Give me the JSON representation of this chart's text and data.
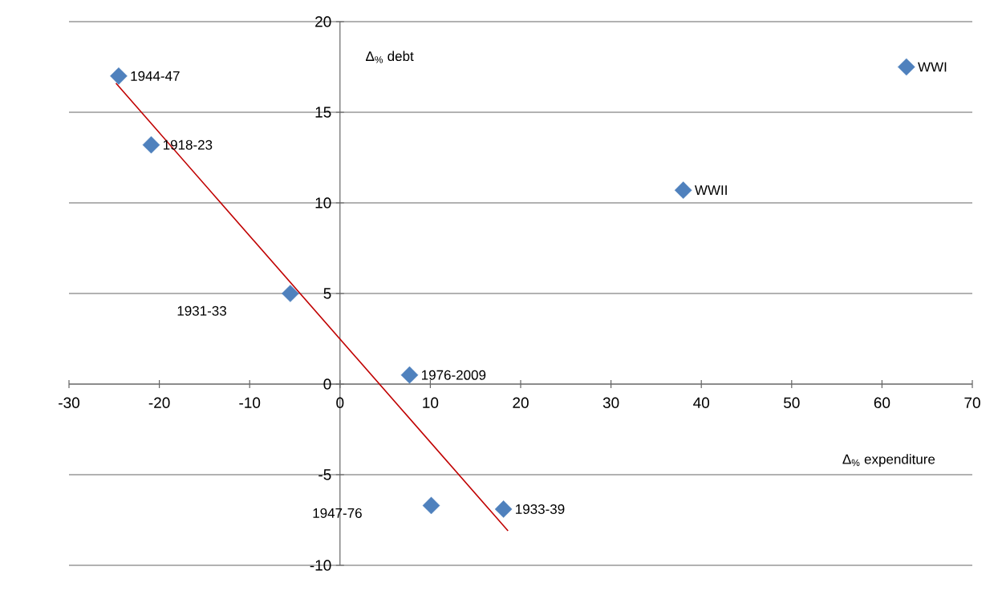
{
  "chart_data": {
    "type": "scatter",
    "xlabel": "Δ$_{%}$ expenditure",
    "ylabel": "Δ$_{%}$ debt",
    "xlim": [
      -30,
      70
    ],
    "ylim": [
      -10,
      20
    ],
    "xticks": [
      -30,
      -20,
      -10,
      0,
      10,
      20,
      30,
      40,
      50,
      60,
      70
    ],
    "yticks": [
      -10,
      -5,
      0,
      5,
      10,
      15,
      20
    ],
    "grid": "y",
    "marker": "diamond",
    "series": [
      {
        "color": "#4f81bd",
        "x": [
          -24.5,
          -20.9,
          -5.5,
          7.7,
          10.1,
          18.1,
          38,
          62.7
        ],
        "values": [
          17,
          13.2,
          5,
          0.5,
          -6.7,
          -6.9,
          10.7,
          17.5
        ]
      },
      {
        "type": "line",
        "color": "#c00000",
        "marker": "none",
        "x": [
          -24.8,
          18.6
        ],
        "values": [
          16.6,
          -8.1
        ]
      }
    ],
    "annotations": [
      {
        "text": "1944-47",
        "x": -24.5,
        "y": 17
      },
      {
        "text": "1918-23",
        "x": -20.9,
        "y": 13.2
      },
      "1931-33",
      {
        "text": "1976-2009",
        "x": 7.7,
        "y": 0.5
      },
      "1947-76",
      {
        "text": "1933-39",
        "x": 18.1,
        "y": -6.9
      },
      {
        "text": "WWII",
        "x": 38,
        "y": 10.7
      },
      {
        "text": "WWI",
        "x": 62.7,
        "y": 17.5
      }
    ]
  }
}
